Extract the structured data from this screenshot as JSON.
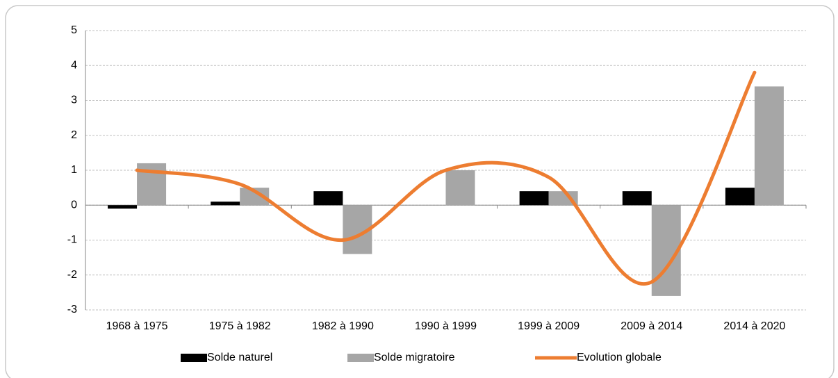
{
  "chart_data": {
    "type": "bar",
    "categories": [
      "1968 à 1975",
      "1975 à 1982",
      "1982 à 1990",
      "1990 à 1999",
      "1999 à 2009",
      "2009 à 2014",
      "2014 à 2020"
    ],
    "series": [
      {
        "name": "Solde naturel",
        "color": "#000000",
        "type": "bar",
        "values": [
          -0.1,
          0.1,
          0.4,
          0,
          0.4,
          0.4,
          0.5
        ]
      },
      {
        "name": "Solde migratoire",
        "color": "#a6a6a6",
        "type": "bar",
        "values": [
          1.2,
          0.5,
          -1.4,
          1.0,
          0.4,
          -2.6,
          3.4
        ]
      },
      {
        "name": "Evolution globale",
        "color": "#ed7d31",
        "type": "line",
        "values": [
          1.0,
          0.6,
          -1.0,
          1.0,
          0.8,
          -2.2,
          3.8
        ]
      }
    ],
    "ylim": [
      -3,
      5
    ],
    "yticks": [
      -3,
      -2,
      -1,
      0,
      1,
      2,
      3,
      4,
      5
    ],
    "grid": true,
    "legend": "bottom"
  }
}
